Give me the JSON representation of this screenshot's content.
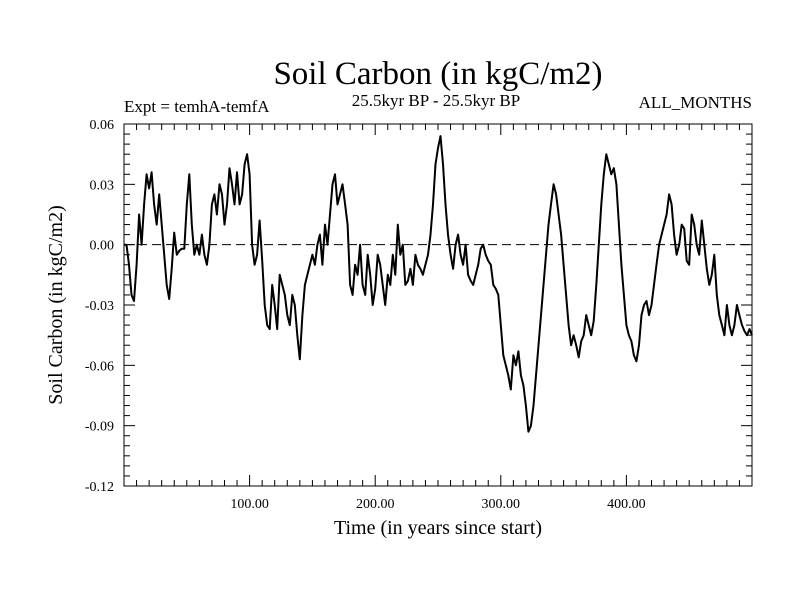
{
  "chart_data": {
    "type": "line",
    "title": "Soil Carbon (in kgC/m2)",
    "subtitle_left": "Expt = temhA-temfA",
    "subtitle_center": "25.5kyr BP - 25.5kyr BP",
    "subtitle_right": "ALL_MONTHS",
    "xlabel": "Time (in years since start)",
    "ylabel": "Soil Carbon (in kgC/m2)",
    "xlim": [
      0,
      500
    ],
    "ylim": [
      -0.12,
      0.06
    ],
    "xticks": [
      100,
      200,
      300,
      400
    ],
    "xtick_labels": [
      "100.00",
      "200.00",
      "300.00",
      "400.00"
    ],
    "yticks": [
      0.06,
      0.03,
      0.0,
      -0.03,
      -0.06,
      -0.09,
      -0.12
    ],
    "ytick_labels": [
      "0.06",
      "0.03",
      "0.00",
      "-0.03",
      "-0.06",
      "-0.09",
      "-0.12"
    ],
    "reference_line": {
      "y": 0.0,
      "style": "dashed"
    },
    "series": [
      {
        "name": "Soil Carbon",
        "color": "#000000",
        "points": [
          [
            0,
            0.0
          ],
          [
            2,
            0.0
          ],
          [
            4,
            -0.01
          ],
          [
            6,
            -0.025
          ],
          [
            8,
            -0.028
          ],
          [
            10,
            -0.01
          ],
          [
            12,
            0.015
          ],
          [
            14,
            0.0
          ],
          [
            16,
            0.02
          ],
          [
            18,
            0.035
          ],
          [
            20,
            0.028
          ],
          [
            22,
            0.036
          ],
          [
            24,
            0.02
          ],
          [
            26,
            0.01
          ],
          [
            28,
            0.025
          ],
          [
            30,
            0.01
          ],
          [
            32,
            -0.005
          ],
          [
            34,
            -0.02
          ],
          [
            36,
            -0.027
          ],
          [
            38,
            -0.012
          ],
          [
            40,
            0.006
          ],
          [
            42,
            -0.005
          ],
          [
            44,
            -0.003
          ],
          [
            46,
            -0.002
          ],
          [
            48,
            -0.002
          ],
          [
            50,
            0.02
          ],
          [
            52,
            0.035
          ],
          [
            54,
            0.01
          ],
          [
            56,
            -0.005
          ],
          [
            58,
            0.0
          ],
          [
            60,
            -0.005
          ],
          [
            62,
            0.005
          ],
          [
            64,
            -0.005
          ],
          [
            66,
            -0.01
          ],
          [
            68,
            0.0
          ],
          [
            70,
            0.02
          ],
          [
            72,
            0.025
          ],
          [
            74,
            0.015
          ],
          [
            76,
            0.03
          ],
          [
            78,
            0.025
          ],
          [
            80,
            0.01
          ],
          [
            82,
            0.02
          ],
          [
            84,
            0.038
          ],
          [
            86,
            0.03
          ],
          [
            88,
            0.02
          ],
          [
            90,
            0.036
          ],
          [
            92,
            0.02
          ],
          [
            94,
            0.025
          ],
          [
            96,
            0.04
          ],
          [
            98,
            0.045
          ],
          [
            100,
            0.035
          ],
          [
            102,
            0.0
          ],
          [
            104,
            -0.01
          ],
          [
            106,
            -0.005
          ],
          [
            108,
            0.012
          ],
          [
            110,
            -0.008
          ],
          [
            112,
            -0.03
          ],
          [
            114,
            -0.04
          ],
          [
            116,
            -0.042
          ],
          [
            118,
            -0.02
          ],
          [
            120,
            -0.03
          ],
          [
            122,
            -0.042
          ],
          [
            124,
            -0.015
          ],
          [
            126,
            -0.02
          ],
          [
            128,
            -0.025
          ],
          [
            130,
            -0.035
          ],
          [
            132,
            -0.04
          ],
          [
            134,
            -0.025
          ],
          [
            136,
            -0.03
          ],
          [
            138,
            -0.045
          ],
          [
            140,
            -0.057
          ],
          [
            142,
            -0.035
          ],
          [
            144,
            -0.02
          ],
          [
            146,
            -0.015
          ],
          [
            148,
            -0.01
          ],
          [
            150,
            -0.005
          ],
          [
            152,
            -0.01
          ],
          [
            154,
            0.0
          ],
          [
            156,
            0.005
          ],
          [
            158,
            -0.01
          ],
          [
            160,
            0.01
          ],
          [
            162,
            0.0
          ],
          [
            164,
            0.015
          ],
          [
            166,
            0.03
          ],
          [
            168,
            0.035
          ],
          [
            170,
            0.02
          ],
          [
            172,
            0.025
          ],
          [
            174,
            0.03
          ],
          [
            176,
            0.02
          ],
          [
            178,
            0.01
          ],
          [
            180,
            -0.02
          ],
          [
            182,
            -0.025
          ],
          [
            184,
            -0.01
          ],
          [
            186,
            -0.015
          ],
          [
            188,
            0.0
          ],
          [
            190,
            -0.02
          ],
          [
            192,
            -0.025
          ],
          [
            194,
            -0.005
          ],
          [
            196,
            -0.015
          ],
          [
            198,
            -0.03
          ],
          [
            200,
            -0.022
          ],
          [
            202,
            -0.005
          ],
          [
            204,
            -0.01
          ],
          [
            206,
            -0.02
          ],
          [
            208,
            -0.03
          ],
          [
            210,
            -0.015
          ],
          [
            212,
            -0.02
          ],
          [
            214,
            -0.005
          ],
          [
            216,
            -0.015
          ],
          [
            218,
            0.01
          ],
          [
            220,
            -0.005
          ],
          [
            222,
            0.0
          ],
          [
            224,
            -0.02
          ],
          [
            226,
            -0.018
          ],
          [
            228,
            -0.012
          ],
          [
            230,
            -0.02
          ],
          [
            232,
            -0.005
          ],
          [
            234,
            -0.01
          ],
          [
            236,
            -0.012
          ],
          [
            238,
            -0.015
          ],
          [
            240,
            -0.01
          ],
          [
            242,
            -0.005
          ],
          [
            244,
            0.005
          ],
          [
            246,
            0.02
          ],
          [
            248,
            0.04
          ],
          [
            250,
            0.048
          ],
          [
            252,
            0.054
          ],
          [
            254,
            0.04
          ],
          [
            256,
            0.02
          ],
          [
            258,
            0.005
          ],
          [
            260,
            -0.005
          ],
          [
            262,
            -0.012
          ],
          [
            264,
            0.0
          ],
          [
            266,
            0.005
          ],
          [
            268,
            -0.005
          ],
          [
            270,
            -0.01
          ],
          [
            272,
            0.0
          ],
          [
            274,
            -0.015
          ],
          [
            276,
            -0.018
          ],
          [
            278,
            -0.02
          ],
          [
            280,
            -0.015
          ],
          [
            282,
            -0.01
          ],
          [
            284,
            -0.002
          ],
          [
            286,
            0.0
          ],
          [
            288,
            -0.005
          ],
          [
            290,
            -0.008
          ],
          [
            292,
            -0.01
          ],
          [
            294,
            -0.02
          ],
          [
            296,
            -0.022
          ],
          [
            298,
            -0.025
          ],
          [
            300,
            -0.04
          ],
          [
            302,
            -0.055
          ],
          [
            304,
            -0.06
          ],
          [
            306,
            -0.065
          ],
          [
            308,
            -0.072
          ],
          [
            310,
            -0.055
          ],
          [
            312,
            -0.06
          ],
          [
            314,
            -0.053
          ],
          [
            316,
            -0.065
          ],
          [
            318,
            -0.07
          ],
          [
            320,
            -0.08
          ],
          [
            322,
            -0.093
          ],
          [
            324,
            -0.09
          ],
          [
            326,
            -0.08
          ],
          [
            328,
            -0.065
          ],
          [
            330,
            -0.05
          ],
          [
            332,
            -0.035
          ],
          [
            334,
            -0.02
          ],
          [
            336,
            -0.005
          ],
          [
            338,
            0.01
          ],
          [
            340,
            0.02
          ],
          [
            342,
            0.03
          ],
          [
            344,
            0.025
          ],
          [
            346,
            0.015
          ],
          [
            348,
            0.005
          ],
          [
            350,
            -0.01
          ],
          [
            352,
            -0.025
          ],
          [
            354,
            -0.04
          ],
          [
            356,
            -0.05
          ],
          [
            358,
            -0.045
          ],
          [
            360,
            -0.05
          ],
          [
            362,
            -0.056
          ],
          [
            364,
            -0.048
          ],
          [
            366,
            -0.045
          ],
          [
            368,
            -0.035
          ],
          [
            370,
            -0.04
          ],
          [
            372,
            -0.045
          ],
          [
            374,
            -0.038
          ],
          [
            376,
            -0.02
          ],
          [
            378,
            0.0
          ],
          [
            380,
            0.02
          ],
          [
            382,
            0.035
          ],
          [
            384,
            0.045
          ],
          [
            386,
            0.04
          ],
          [
            388,
            0.035
          ],
          [
            390,
            0.038
          ],
          [
            392,
            0.03
          ],
          [
            394,
            0.01
          ],
          [
            396,
            -0.01
          ],
          [
            398,
            -0.025
          ],
          [
            400,
            -0.04
          ],
          [
            402,
            -0.045
          ],
          [
            404,
            -0.048
          ],
          [
            406,
            -0.055
          ],
          [
            408,
            -0.058
          ],
          [
            410,
            -0.05
          ],
          [
            412,
            -0.035
          ],
          [
            414,
            -0.03
          ],
          [
            416,
            -0.028
          ],
          [
            418,
            -0.035
          ],
          [
            420,
            -0.03
          ],
          [
            422,
            -0.02
          ],
          [
            424,
            -0.01
          ],
          [
            426,
            0.0
          ],
          [
            428,
            0.005
          ],
          [
            430,
            0.01
          ],
          [
            432,
            0.015
          ],
          [
            434,
            0.025
          ],
          [
            436,
            0.02
          ],
          [
            438,
            0.005
          ],
          [
            440,
            -0.005
          ],
          [
            442,
            0.0
          ],
          [
            444,
            0.01
          ],
          [
            446,
            0.008
          ],
          [
            448,
            -0.008
          ],
          [
            450,
            -0.01
          ],
          [
            452,
            0.015
          ],
          [
            454,
            0.01
          ],
          [
            456,
            0.0
          ],
          [
            458,
            -0.005
          ],
          [
            460,
            0.012
          ],
          [
            462,
            0.0
          ],
          [
            464,
            -0.012
          ],
          [
            466,
            -0.02
          ],
          [
            468,
            -0.015
          ],
          [
            470,
            -0.005
          ],
          [
            472,
            -0.025
          ],
          [
            474,
            -0.035
          ],
          [
            476,
            -0.04
          ],
          [
            478,
            -0.045
          ],
          [
            480,
            -0.03
          ],
          [
            482,
            -0.04
          ],
          [
            484,
            -0.045
          ],
          [
            486,
            -0.04
          ],
          [
            488,
            -0.03
          ],
          [
            490,
            -0.035
          ],
          [
            492,
            -0.04
          ],
          [
            494,
            -0.043
          ],
          [
            496,
            -0.045
          ],
          [
            498,
            -0.042
          ],
          [
            500,
            -0.045
          ]
        ]
      }
    ]
  }
}
